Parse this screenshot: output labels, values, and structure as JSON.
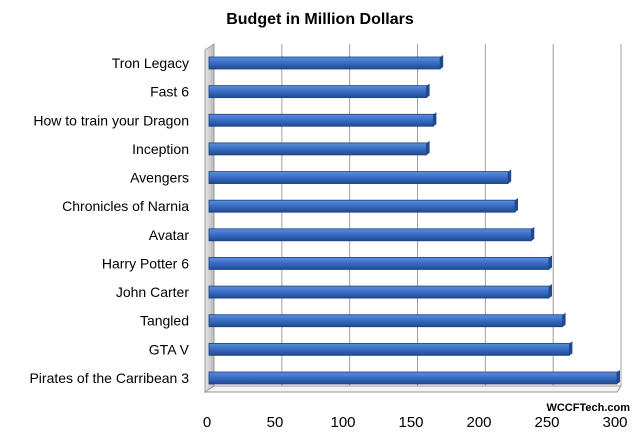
{
  "chart_data": {
    "type": "bar",
    "orientation": "horizontal",
    "title": "Budget in Million Dollars",
    "xlabel": "",
    "ylabel": "",
    "categories": [
      "Tron Legacy",
      "Fast 6",
      "How to train your Dragon",
      "Inception",
      "Avengers",
      "Chronicles of Narnia",
      "Avatar",
      "Harry Potter 6",
      "John Carter",
      "Tangled",
      "GTA V",
      "Pirates of the Carribean 3"
    ],
    "values": [
      170,
      160,
      165,
      160,
      220,
      225,
      237,
      250,
      250,
      260,
      265,
      300
    ],
    "xlim": [
      0,
      300
    ],
    "xticks": [
      "0",
      "50",
      "100",
      "150",
      "200",
      "250",
      "300"
    ],
    "grid": true,
    "legend": "none",
    "bar_color": "#3A6FC4",
    "watermark": "WCCFTech.com"
  }
}
